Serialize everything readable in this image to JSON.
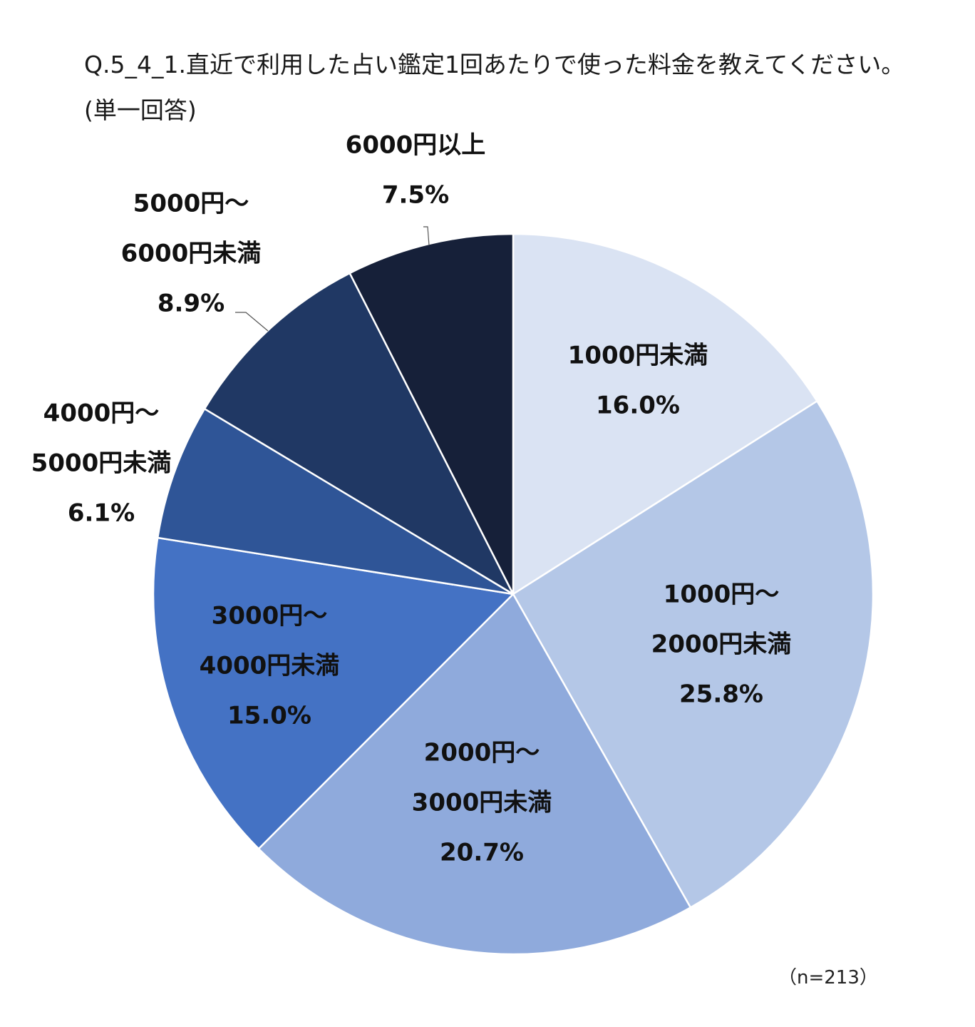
{
  "title_line1": "Q.5_4_1.直近で利用した占い鑑定1回あたりで使った料金を教えてください。",
  "title_line2": "(単一回答)",
  "note": "（n=213）",
  "chart_data": {
    "type": "pie",
    "title": "Q.5_4_1.直近で利用した占い鑑定1回あたりで使った料金を教えてください。(単一回答)",
    "start": "12 o'clock, clockwise",
    "slices": [
      {
        "label_lines": [
          "1000円未満"
        ],
        "label": "1000円未満",
        "value": 16.0,
        "pct_text": "16.0%",
        "color": "#dae3f3"
      },
      {
        "label_lines": [
          "1000円～",
          "2000円未満"
        ],
        "label": "1000円～2000円未満",
        "value": 25.8,
        "pct_text": "25.8%",
        "color": "#b4c7e7"
      },
      {
        "label_lines": [
          "2000円～",
          "3000円未満"
        ],
        "label": "2000円～3000円未満",
        "value": 20.7,
        "pct_text": "20.7%",
        "color": "#8faadc"
      },
      {
        "label_lines": [
          "3000円～",
          "4000円未満"
        ],
        "label": "3000円～4000円未満",
        "value": 15.0,
        "pct_text": "15.0%",
        "color": "#4472c4"
      },
      {
        "label_lines": [
          "4000円～",
          "5000円未満"
        ],
        "label": "4000円～5000円未満",
        "value": 6.1,
        "pct_text": "6.1%",
        "color": "#2f5597"
      },
      {
        "label_lines": [
          "5000円～",
          "6000円未満"
        ],
        "label": "5000円～6000円未満",
        "value": 8.9,
        "pct_text": "8.9%",
        "color": "#203864"
      },
      {
        "label_lines": [
          "6000円以上"
        ],
        "label": "6000円以上",
        "value": 7.5,
        "pct_text": "7.5%",
        "color": "#162039"
      }
    ]
  }
}
